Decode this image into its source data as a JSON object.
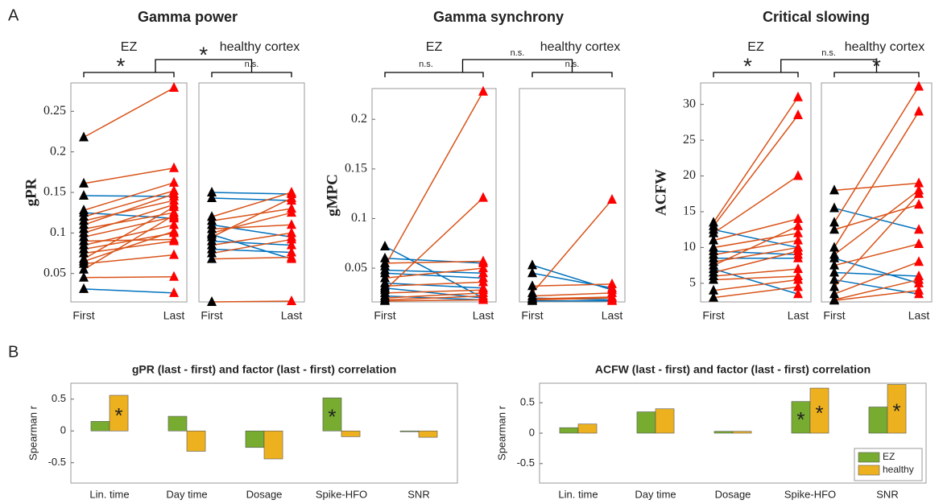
{
  "panel_labels": [
    "A",
    "B"
  ],
  "chart_data": [
    {
      "type": "paired",
      "title": "Gamma power",
      "ylabel": "gPR",
      "group_label": "EZ",
      "significance": "*",
      "between_significance": "*",
      "categories": [
        "First",
        "Last"
      ],
      "ylim": [
        0.015,
        0.285
      ],
      "yticks": [
        0.05,
        0.1,
        0.15,
        0.2,
        0.25
      ],
      "first": [
        0.218,
        0.161,
        0.146,
        0.128,
        0.125,
        0.12,
        0.115,
        0.11,
        0.105,
        0.1,
        0.095,
        0.09,
        0.085,
        0.08,
        0.075,
        0.068,
        0.065,
        0.062,
        0.055,
        0.045,
        0.031
      ],
      "last": [
        0.279,
        0.18,
        0.145,
        0.162,
        0.118,
        0.152,
        0.14,
        0.148,
        0.125,
        0.135,
        0.12,
        0.092,
        0.11,
        0.1,
        0.09,
        0.132,
        0.102,
        0.073,
        0.122,
        0.046,
        0.026
      ],
      "colors": {
        "first_marker": "#000000",
        "last_marker": "#ff0000",
        "increase": "#d95319",
        "decrease": "#0072bd"
      }
    },
    {
      "type": "paired",
      "group_label": "healthy cortex",
      "significance": "n.s.",
      "categories": [
        "First",
        "Last"
      ],
      "ylim": [
        0.015,
        0.285
      ],
      "first": [
        0.15,
        0.143,
        0.12,
        0.115,
        0.11,
        0.105,
        0.1,
        0.098,
        0.095,
        0.09,
        0.085,
        0.08,
        0.075,
        0.068,
        0.015
      ],
      "last": [
        0.148,
        0.14,
        0.15,
        0.13,
        0.095,
        0.11,
        0.125,
        0.068,
        0.143,
        0.085,
        0.1,
        0.076,
        0.092,
        0.07,
        0.016
      ],
      "colors": {
        "first_marker": "#000000",
        "last_marker": "#ff0000",
        "increase": "#d95319",
        "decrease": "#0072bd"
      }
    },
    {
      "type": "paired",
      "title": "Gamma synchrony",
      "ylabel": "gMPC",
      "group_label": "EZ",
      "significance": "n.s.",
      "between_significance": "n.s.",
      "categories": [
        "First",
        "Last"
      ],
      "ylim": [
        0.016,
        0.231
      ],
      "yticks": [
        0.05,
        0.1,
        0.15,
        0.2
      ],
      "first": [
        0.072,
        0.06,
        0.055,
        0.052,
        0.048,
        0.045,
        0.04,
        0.035,
        0.032,
        0.03,
        0.028,
        0.025,
        0.022,
        0.02,
        0.018,
        0.017
      ],
      "last": [
        0.02,
        0.055,
        0.057,
        0.228,
        0.045,
        0.04,
        0.05,
        0.03,
        0.036,
        0.02,
        0.121,
        0.028,
        0.018,
        0.025,
        0.022,
        0.018
      ],
      "colors": {
        "first_marker": "#000000",
        "last_marker": "#ff0000",
        "increase": "#d95319",
        "decrease": "#0072bd"
      }
    },
    {
      "type": "paired",
      "group_label": "healthy cortex",
      "significance": "n.s.",
      "categories": [
        "First",
        "Last"
      ],
      "ylim": [
        0.016,
        0.231
      ],
      "first": [
        0.053,
        0.045,
        0.032,
        0.025,
        0.022,
        0.02,
        0.019,
        0.018,
        0.017
      ],
      "last": [
        0.028,
        0.03,
        0.034,
        0.119,
        0.025,
        0.018,
        0.021,
        0.02,
        0.017
      ],
      "colors": {
        "first_marker": "#000000",
        "last_marker": "#ff0000",
        "increase": "#d95319",
        "decrease": "#0072bd"
      }
    },
    {
      "type": "paired",
      "title": "Critical slowing",
      "ylabel": "ACFW",
      "group_label": "EZ",
      "significance": "*",
      "between_significance": "n.s.",
      "categories": [
        "First",
        "Last"
      ],
      "ylim": [
        2.4,
        33
      ],
      "yticks": [
        5,
        10,
        15,
        20,
        25,
        30
      ],
      "first": [
        13.5,
        13,
        12.5,
        12,
        11,
        10,
        9.5,
        9,
        8.5,
        8,
        7.5,
        7,
        6.5,
        6,
        5.5,
        4,
        3
      ],
      "last": [
        31,
        28.5,
        10,
        20,
        14,
        12,
        9,
        11,
        8.5,
        10,
        13,
        3.5,
        9.5,
        7,
        6,
        5.5,
        4.5
      ],
      "colors": {
        "first_marker": "#000000",
        "last_marker": "#ff0000",
        "increase": "#d95319",
        "decrease": "#0072bd"
      }
    },
    {
      "type": "paired",
      "group_label": "healthy cortex",
      "significance": "*",
      "categories": [
        "First",
        "Last"
      ],
      "ylim": [
        2.4,
        33
      ],
      "first": [
        18,
        15.5,
        13.5,
        12.5,
        10,
        9,
        8.5,
        7.5,
        6.5,
        5.5,
        4.5,
        3.5,
        2.7,
        2.6
      ],
      "last": [
        19,
        12.5,
        32.5,
        16,
        29,
        18,
        5,
        10.5,
        6,
        3.5,
        17.5,
        8,
        5.5,
        4
      ],
      "colors": {
        "first_marker": "#000000",
        "last_marker": "#ff0000",
        "increase": "#d95319",
        "decrease": "#0072bd"
      }
    },
    {
      "type": "bar",
      "title": "gPR (last - first) and factor (last - first) correlation",
      "ylabel": "Spearman r",
      "categories": [
        "Lin. time",
        "Day time",
        "Dosage",
        "Spike-HFO",
        "SNR"
      ],
      "ylim": [
        -0.82,
        0.75
      ],
      "yticks": [
        -0.5,
        0,
        0.5
      ],
      "series": [
        {
          "color": "#77ac30",
          "values": [
            0.15,
            0.23,
            -0.26,
            0.52,
            -0.01
          ],
          "annotations": [
            null,
            null,
            null,
            "*",
            null
          ]
        },
        {
          "color": "#edb120",
          "values": [
            0.56,
            -0.32,
            -0.44,
            -0.09,
            -0.1
          ],
          "annotations": [
            "*",
            null,
            null,
            null,
            null
          ]
        }
      ]
    },
    {
      "type": "bar",
      "title": "ACFW (last - first) and factor (last - first) correlation",
      "ylabel": "Spearman r",
      "categories": [
        "Lin. time",
        "Day time",
        "Dosage",
        "Spike-HFO",
        "SNR"
      ],
      "ylim": [
        -0.82,
        0.82
      ],
      "yticks": [
        -0.5,
        0,
        0.5
      ],
      "legend": "lower right",
      "series": [
        {
          "name": "EZ",
          "color": "#77ac30",
          "values": [
            0.09,
            0.35,
            0.03,
            0.52,
            0.43
          ],
          "annotations": [
            null,
            null,
            null,
            "*",
            null
          ]
        },
        {
          "name": "healthy",
          "color": "#edb120",
          "values": [
            0.15,
            0.4,
            0.03,
            0.74,
            0.8
          ],
          "annotations": [
            null,
            null,
            null,
            "*",
            "*"
          ]
        }
      ]
    }
  ]
}
